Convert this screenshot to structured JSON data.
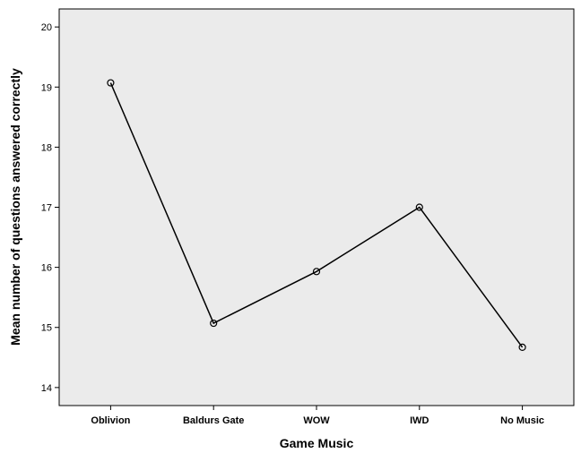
{
  "chart_data": {
    "type": "line",
    "title": "",
    "xlabel": "Game Music",
    "ylabel": "Mean number of questions answered correctly",
    "categories": [
      "Oblivion",
      "Baldurs Gate",
      "WOW",
      "IWD",
      "No Music"
    ],
    "series": [
      {
        "values": [
          19.07,
          15.07,
          15.93,
          17.0,
          14.67
        ]
      }
    ],
    "ylim": [
      13.7,
      20.3
    ],
    "yticks": [
      14,
      15,
      16,
      17,
      18,
      19,
      20
    ],
    "grid": false,
    "marker": "open-circle",
    "colors": {
      "plot_background": "#ebebeb",
      "line": "#000000",
      "axis": "#000000"
    }
  }
}
